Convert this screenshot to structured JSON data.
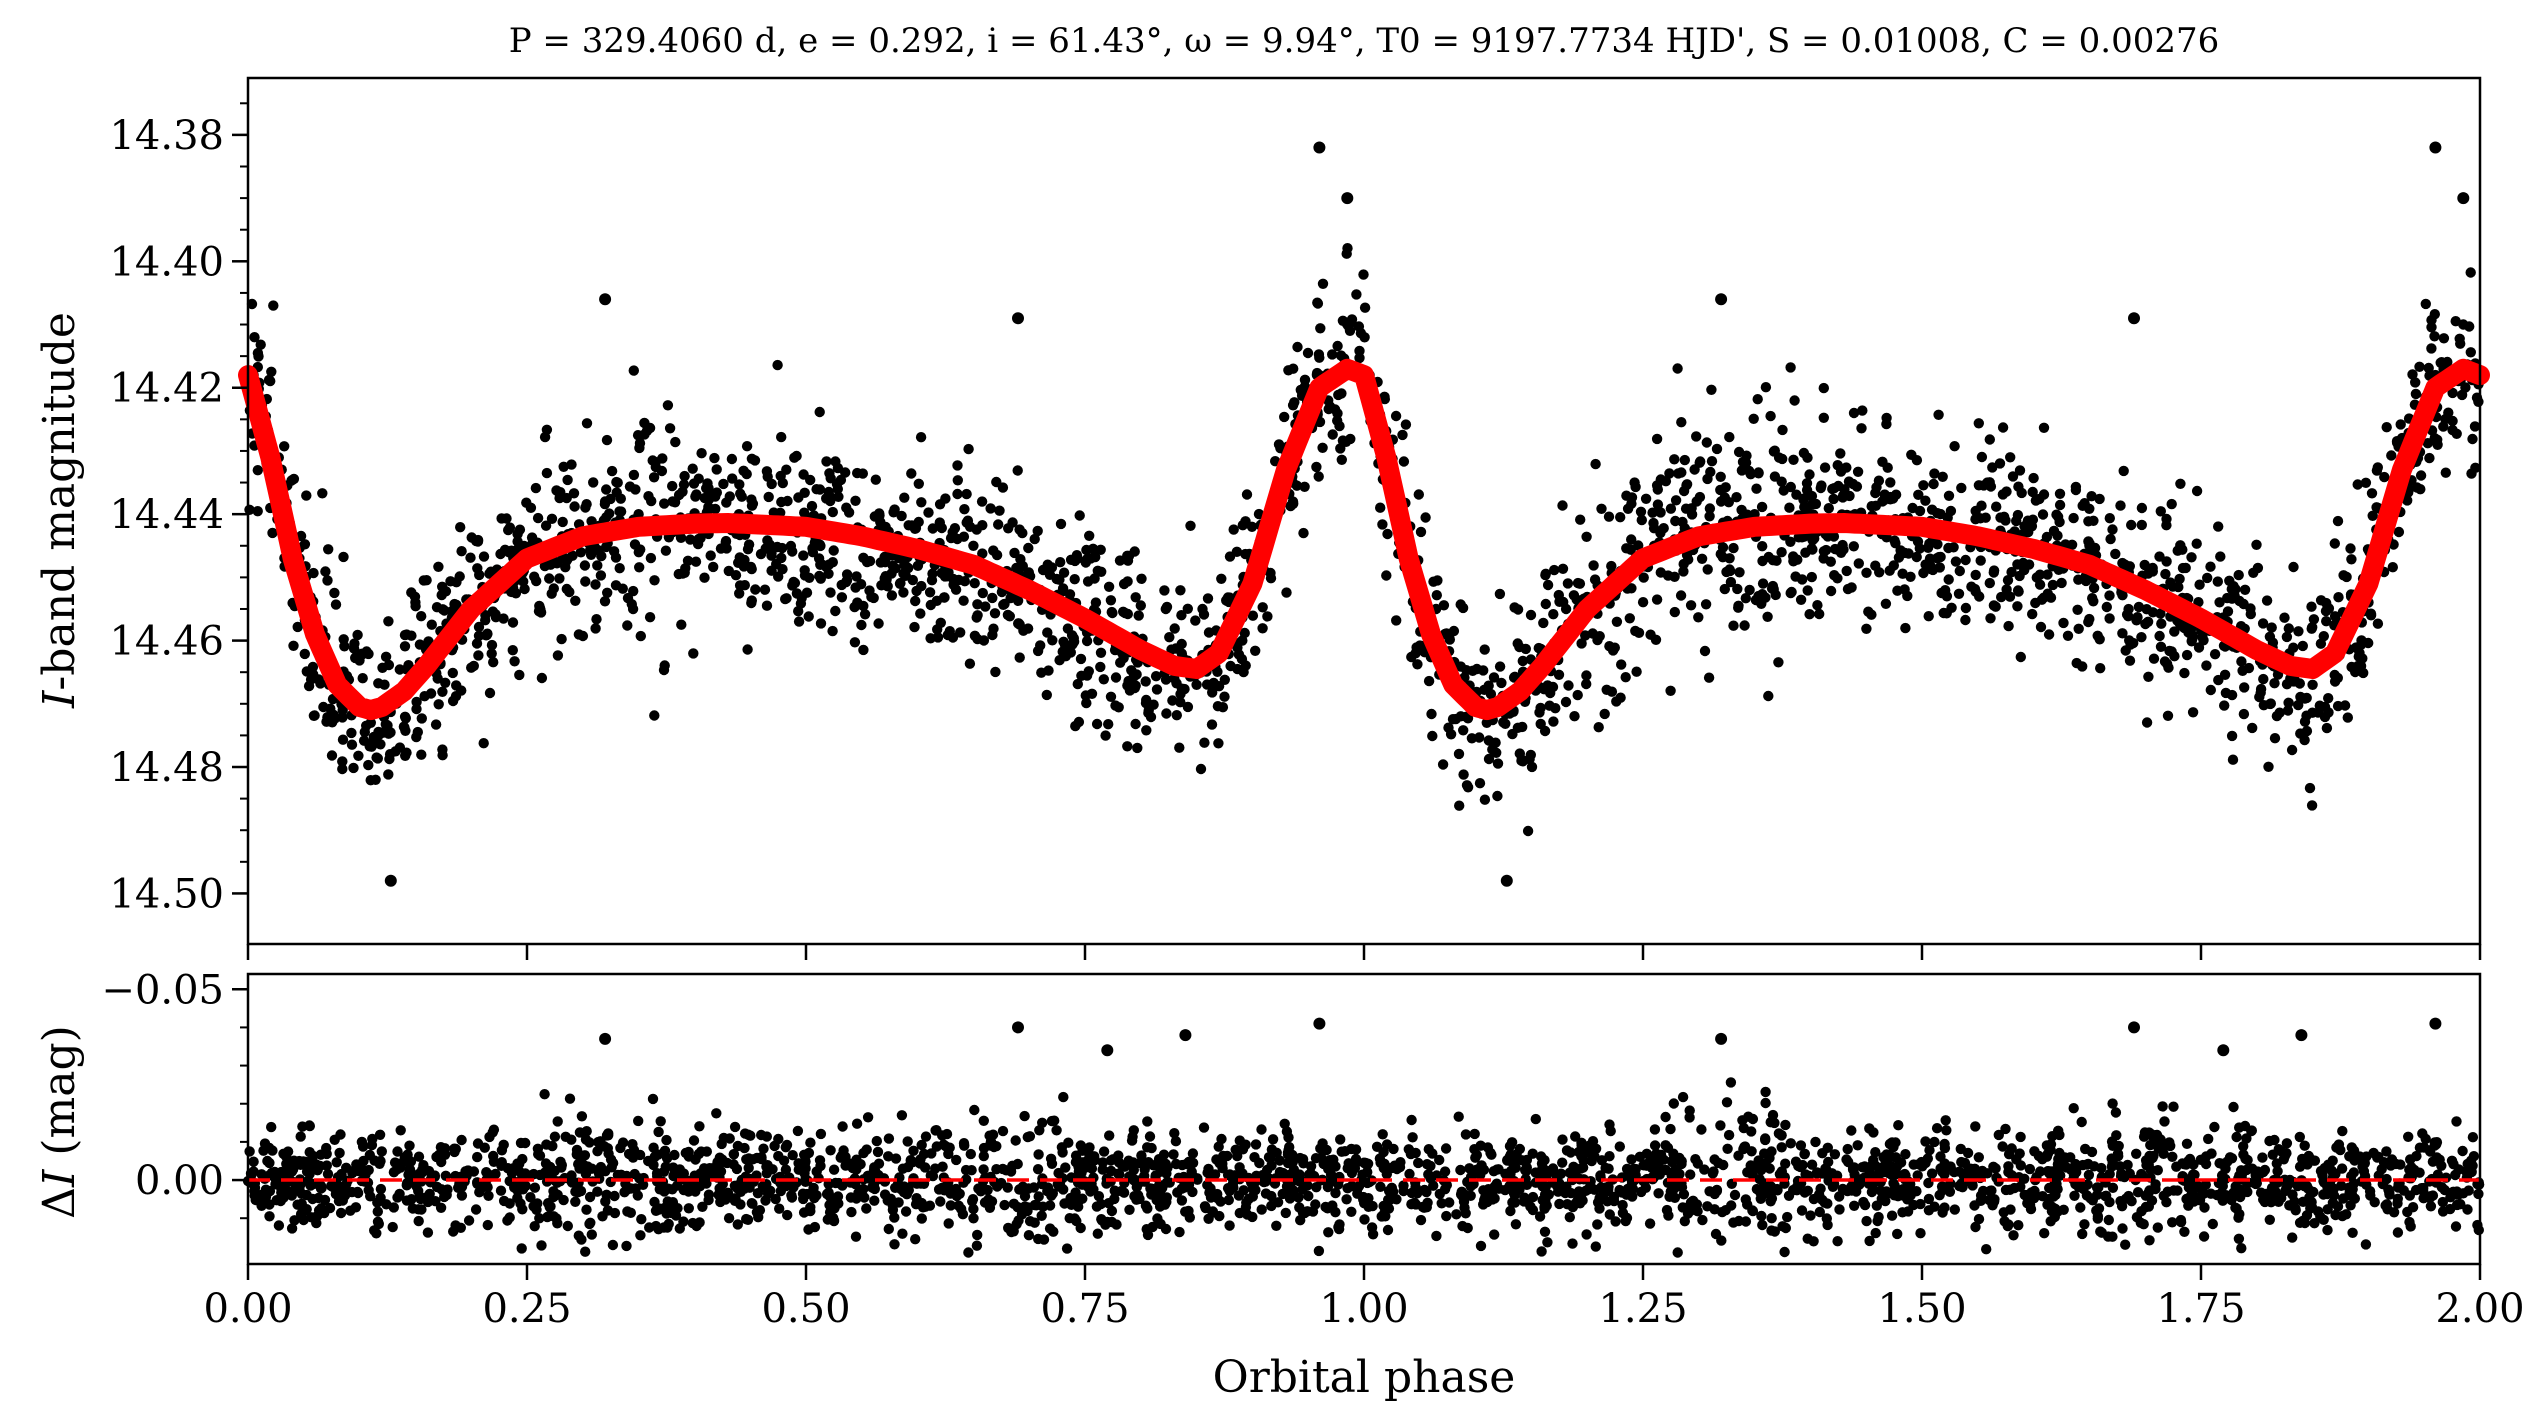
{
  "chart_data": [
    {
      "type": "scatter",
      "panel": "light-curve",
      "title": "P = 329.4060 d, e = 0.292, i = 61.43°, ω = 9.94°, T0 = 9197.7734 HJD', S = 0.01008, C = 0.00276",
      "title_parts": {
        "P": "329.4060 d",
        "e": "0.292",
        "i": "61.43°",
        "omega": "9.94°",
        "T0": "9197.7734 HJD'",
        "S": "0.01008",
        "C": "0.00276"
      },
      "xlabel": "Orbital phase",
      "ylabel_italic": "I",
      "ylabel_rest": "-band magnitude",
      "xlim": [
        0.0,
        2.0
      ],
      "ylim": [
        14.508,
        14.371
      ],
      "y_inverted": true,
      "yticks": [
        "14.38",
        "14.40",
        "14.42",
        "14.44",
        "14.46",
        "14.48",
        "14.50"
      ],
      "ytick_values": [
        14.38,
        14.4,
        14.42,
        14.44,
        14.46,
        14.48,
        14.5
      ],
      "grid": false,
      "series": [
        {
          "kind": "points",
          "color": "#000000",
          "note_points_sampled": true,
          "x": [
            0.005,
            0.02,
            0.04,
            0.06,
            0.08,
            0.1,
            0.11,
            0.13,
            0.15,
            0.17,
            0.2,
            0.23,
            0.26,
            0.29,
            0.32,
            0.35,
            0.38,
            0.41,
            0.44,
            0.47,
            0.5,
            0.53,
            0.56,
            0.59,
            0.62,
            0.65,
            0.68,
            0.71,
            0.74,
            0.77,
            0.8,
            0.83,
            0.85,
            0.87,
            0.9,
            0.93,
            0.96,
            0.985,
            1.005,
            1.02,
            1.04,
            1.06,
            1.08,
            1.1,
            1.11,
            1.13,
            1.15,
            1.17,
            1.2,
            1.23,
            1.26,
            1.29,
            1.32,
            1.35,
            1.38,
            1.41,
            1.44,
            1.47,
            1.5,
            1.53,
            1.56,
            1.59,
            1.62,
            1.65,
            1.68,
            1.71,
            1.74,
            1.77,
            1.8,
            1.83,
            1.85,
            1.87,
            1.9,
            1.93,
            1.96,
            1.985
          ],
          "y": [
            14.418,
            14.43,
            14.447,
            14.46,
            14.467,
            14.471,
            14.473,
            14.469,
            14.465,
            14.461,
            14.455,
            14.449,
            14.445,
            14.443,
            14.438,
            14.44,
            14.441,
            14.441,
            14.44,
            14.441,
            14.442,
            14.443,
            14.444,
            14.446,
            14.447,
            14.445,
            14.449,
            14.452,
            14.455,
            14.458,
            14.461,
            14.466,
            14.467,
            14.462,
            14.452,
            14.436,
            14.418,
            14.41,
            14.418,
            14.43,
            14.447,
            14.46,
            14.467,
            14.471,
            14.473,
            14.469,
            14.465,
            14.461,
            14.455,
            14.449,
            14.445,
            14.443,
            14.438,
            14.44,
            14.441,
            14.441,
            14.44,
            14.441,
            14.442,
            14.443,
            14.444,
            14.446,
            14.447,
            14.445,
            14.449,
            14.452,
            14.455,
            14.458,
            14.461,
            14.466,
            14.467,
            14.462,
            14.452,
            14.436,
            14.418,
            14.41
          ]
        },
        {
          "kind": "outliers",
          "color": "#000000",
          "x": [
            0.128,
            0.32,
            0.69,
            0.96,
            0.985,
            1.128,
            1.32,
            1.69,
            1.96,
            1.985
          ],
          "y": [
            14.498,
            14.406,
            14.409,
            14.382,
            14.39,
            14.498,
            14.406,
            14.409,
            14.382,
            14.39
          ]
        },
        {
          "kind": "model",
          "color": "#ff0000",
          "x": [
            0.0,
            0.02,
            0.04,
            0.06,
            0.08,
            0.1,
            0.11,
            0.12,
            0.14,
            0.16,
            0.2,
            0.25,
            0.3,
            0.35,
            0.4,
            0.43,
            0.5,
            0.55,
            0.6,
            0.65,
            0.7,
            0.75,
            0.8,
            0.83,
            0.85,
            0.87,
            0.9,
            0.93,
            0.96,
            0.985,
            1.0,
            1.02,
            1.04,
            1.06,
            1.08,
            1.1,
            1.11,
            1.12,
            1.14,
            1.16,
            1.2,
            1.25,
            1.3,
            1.35,
            1.4,
            1.43,
            1.5,
            1.55,
            1.6,
            1.65,
            1.7,
            1.75,
            1.8,
            1.83,
            1.85,
            1.87,
            1.9,
            1.93,
            1.96,
            1.985,
            2.0
          ],
          "y": [
            14.418,
            14.431,
            14.447,
            14.459,
            14.467,
            14.4705,
            14.471,
            14.4705,
            14.468,
            14.464,
            14.455,
            14.447,
            14.4435,
            14.442,
            14.4415,
            14.4414,
            14.442,
            14.4435,
            14.4455,
            14.448,
            14.452,
            14.4565,
            14.4615,
            14.464,
            14.4645,
            14.462,
            14.451,
            14.433,
            14.42,
            14.417,
            14.418,
            14.431,
            14.447,
            14.459,
            14.467,
            14.4705,
            14.471,
            14.4705,
            14.468,
            14.464,
            14.455,
            14.447,
            14.4435,
            14.442,
            14.4415,
            14.4414,
            14.442,
            14.4435,
            14.4455,
            14.448,
            14.452,
            14.4565,
            14.4615,
            14.464,
            14.4645,
            14.462,
            14.451,
            14.433,
            14.42,
            14.417,
            14.418
          ]
        }
      ]
    },
    {
      "type": "scatter",
      "panel": "residuals",
      "xlabel": "Orbital phase",
      "ylabel_prefix": "Δ",
      "ylabel_italic": "I",
      "ylabel_rest": " (mag)",
      "xlim": [
        0.0,
        2.0
      ],
      "ylim": [
        0.022,
        -0.054
      ],
      "y_inverted": true,
      "yticks": [
        "−0.05",
        "0.00"
      ],
      "ytick_values": [
        -0.05,
        0.0
      ],
      "xticks": [
        "0.00",
        "0.25",
        "0.50",
        "0.75",
        "1.00",
        "1.25",
        "1.50",
        "1.75",
        "2.00"
      ],
      "xtick_values": [
        0.0,
        0.25,
        0.5,
        0.75,
        1.0,
        1.25,
        1.5,
        1.75,
        2.0
      ],
      "zero_line": {
        "y": 0.0,
        "style": "dashed",
        "color": "#ff0000"
      },
      "grid": false,
      "series": [
        {
          "kind": "residual-points",
          "color": "#000000",
          "band": [
            -0.011,
            0.011
          ],
          "note_points_sampled": true
        },
        {
          "kind": "outliers",
          "color": "#000000",
          "x": [
            0.32,
            0.69,
            0.77,
            0.84,
            0.96,
            1.32,
            1.69,
            1.77,
            1.84,
            1.96
          ],
          "y": [
            -0.037,
            -0.04,
            -0.034,
            -0.038,
            -0.041,
            -0.037,
            -0.04,
            -0.034,
            -0.038,
            -0.041
          ]
        }
      ]
    }
  ]
}
